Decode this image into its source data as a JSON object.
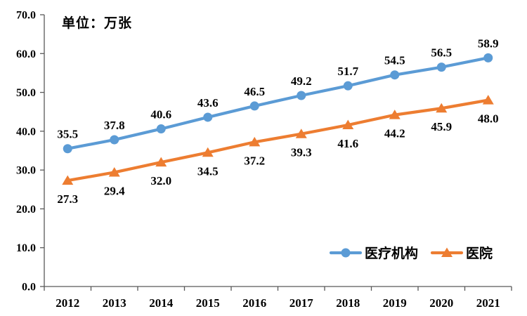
{
  "chart_data": {
    "type": "line",
    "title": "单位：万张",
    "categories": [
      "2012",
      "2013",
      "2014",
      "2015",
      "2016",
      "2017",
      "2018",
      "2019",
      "2020",
      "2021"
    ],
    "series": [
      {
        "name": "医疗机构",
        "color": "#5B9BD5",
        "marker": "circle",
        "label_position": "above",
        "values": [
          35.5,
          37.8,
          40.6,
          43.6,
          46.5,
          49.2,
          51.7,
          54.5,
          56.5,
          58.9
        ]
      },
      {
        "name": "医院",
        "color": "#ED7D31",
        "marker": "triangle",
        "label_position": "below",
        "values": [
          27.3,
          29.4,
          32.0,
          34.5,
          37.2,
          39.3,
          41.6,
          44.2,
          45.9,
          48.0
        ]
      }
    ],
    "ylim": [
      0,
      70
    ],
    "ytick_step": 10,
    "ytick_labels": [
      "0.0",
      "10.0",
      "20.0",
      "30.0",
      "40.0",
      "50.0",
      "60.0",
      "70.0"
    ],
    "xlabel": "",
    "ylabel": "",
    "grid": false,
    "legend_position": "inside-bottom-right",
    "axis_color": "#595959",
    "label_color": "#000000"
  }
}
